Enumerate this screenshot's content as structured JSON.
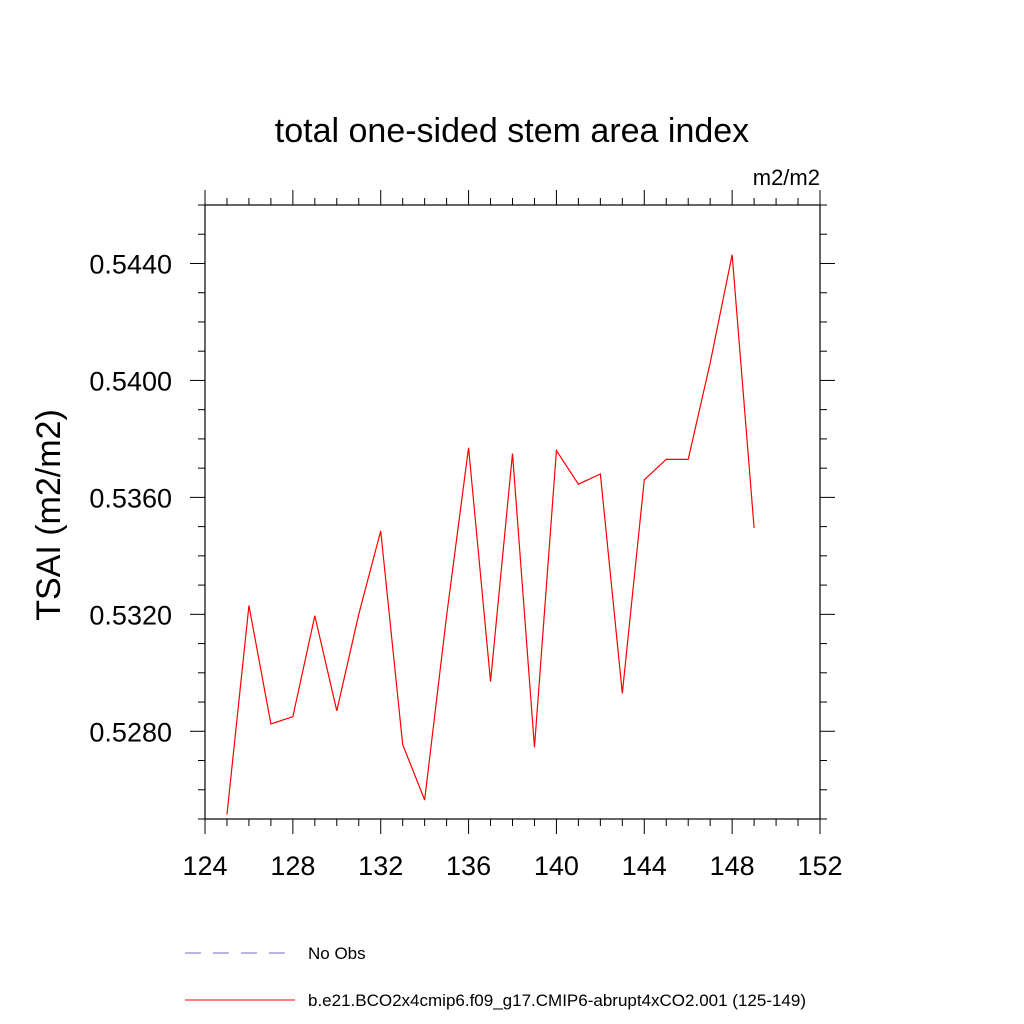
{
  "chart_data": {
    "type": "line",
    "title": "total one-sided stem area index",
    "units_label": "m2/m2",
    "ylabel": "TSAI  (m2/m2)",
    "xlabel": "",
    "xlim": [
      124,
      152
    ],
    "ylim": [
      0.525,
      0.546
    ],
    "x_ticks": [
      124,
      128,
      132,
      136,
      140,
      144,
      148,
      152
    ],
    "x_tick_labels": [
      "124",
      "128",
      "132",
      "136",
      "140",
      "144",
      "148",
      "152"
    ],
    "x_minor_step": 1,
    "y_ticks": [
      0.528,
      0.532,
      0.536,
      0.54,
      0.544
    ],
    "y_tick_labels": [
      "0.5280",
      "0.5320",
      "0.5360",
      "0.5400",
      "0.5440"
    ],
    "y_minor_step": 0.001,
    "grid": false,
    "legend_position": "bottom",
    "series": [
      {
        "name": "b.e21.BCO2x4cmip6.f09_g17.CMIP6-abrupt4xCO2.001 (125-149)",
        "color": "#ff0000",
        "style": "solid",
        "x": [
          125,
          126,
          127,
          128,
          129,
          130,
          131,
          132,
          133,
          134,
          135,
          136,
          137,
          138,
          139,
          140,
          141,
          142,
          143,
          144,
          145,
          146,
          147,
          148,
          149
        ],
        "y": [
          0.52515,
          0.5323,
          0.52825,
          0.5285,
          0.53195,
          0.5287,
          0.532,
          0.53485,
          0.52755,
          0.52565,
          0.53195,
          0.5377,
          0.5297,
          0.5375,
          0.52745,
          0.5376,
          0.53645,
          0.5368,
          0.5293,
          0.5366,
          0.5373,
          0.5373,
          0.5406,
          0.5443,
          0.53495
        ]
      }
    ],
    "legend": [
      {
        "label": "No Obs",
        "color": "#7b68c8",
        "style": "dashed"
      },
      {
        "label": "b.e21.BCO2x4cmip6.f09_g17.CMIP6-abrupt4xCO2.001 (125-149)",
        "color": "#ff0000",
        "style": "solid"
      }
    ]
  }
}
